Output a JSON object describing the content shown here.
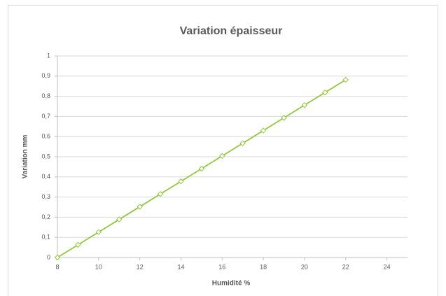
{
  "chart_data": {
    "type": "line",
    "title": "Variation épaisseur",
    "xlabel": "Humidité  %",
    "ylabel": "Variation mm",
    "x": [
      8,
      9,
      10,
      11,
      12,
      13,
      14,
      15,
      16,
      17,
      18,
      19,
      20,
      21,
      22
    ],
    "series": [
      {
        "name": "Variation",
        "color": "#92c83e",
        "values": [
          0,
          0.063,
          0.126,
          0.189,
          0.252,
          0.315,
          0.378,
          0.441,
          0.504,
          0.567,
          0.63,
          0.693,
          0.756,
          0.819,
          0.882
        ]
      }
    ],
    "xlim": [
      8,
      25
    ],
    "xticks": [
      8,
      10,
      12,
      14,
      16,
      18,
      20,
      22,
      24
    ],
    "ylim": [
      0,
      1
    ],
    "yticks": [
      0,
      {
        "value": 0.1,
        "label": "0,1"
      },
      {
        "value": 0.2,
        "label": "0,2"
      },
      {
        "value": 0.3,
        "label": "0,3"
      },
      {
        "value": 0.4,
        "label": "0,4"
      },
      {
        "value": 0.5,
        "label": "0,5"
      },
      {
        "value": 0.6,
        "label": "0,6"
      },
      {
        "value": 0.7,
        "label": "0,7"
      },
      {
        "value": 0.8,
        "label": "0,8"
      },
      {
        "value": 0.9,
        "label": "0,9"
      },
      1
    ],
    "grid": true
  }
}
